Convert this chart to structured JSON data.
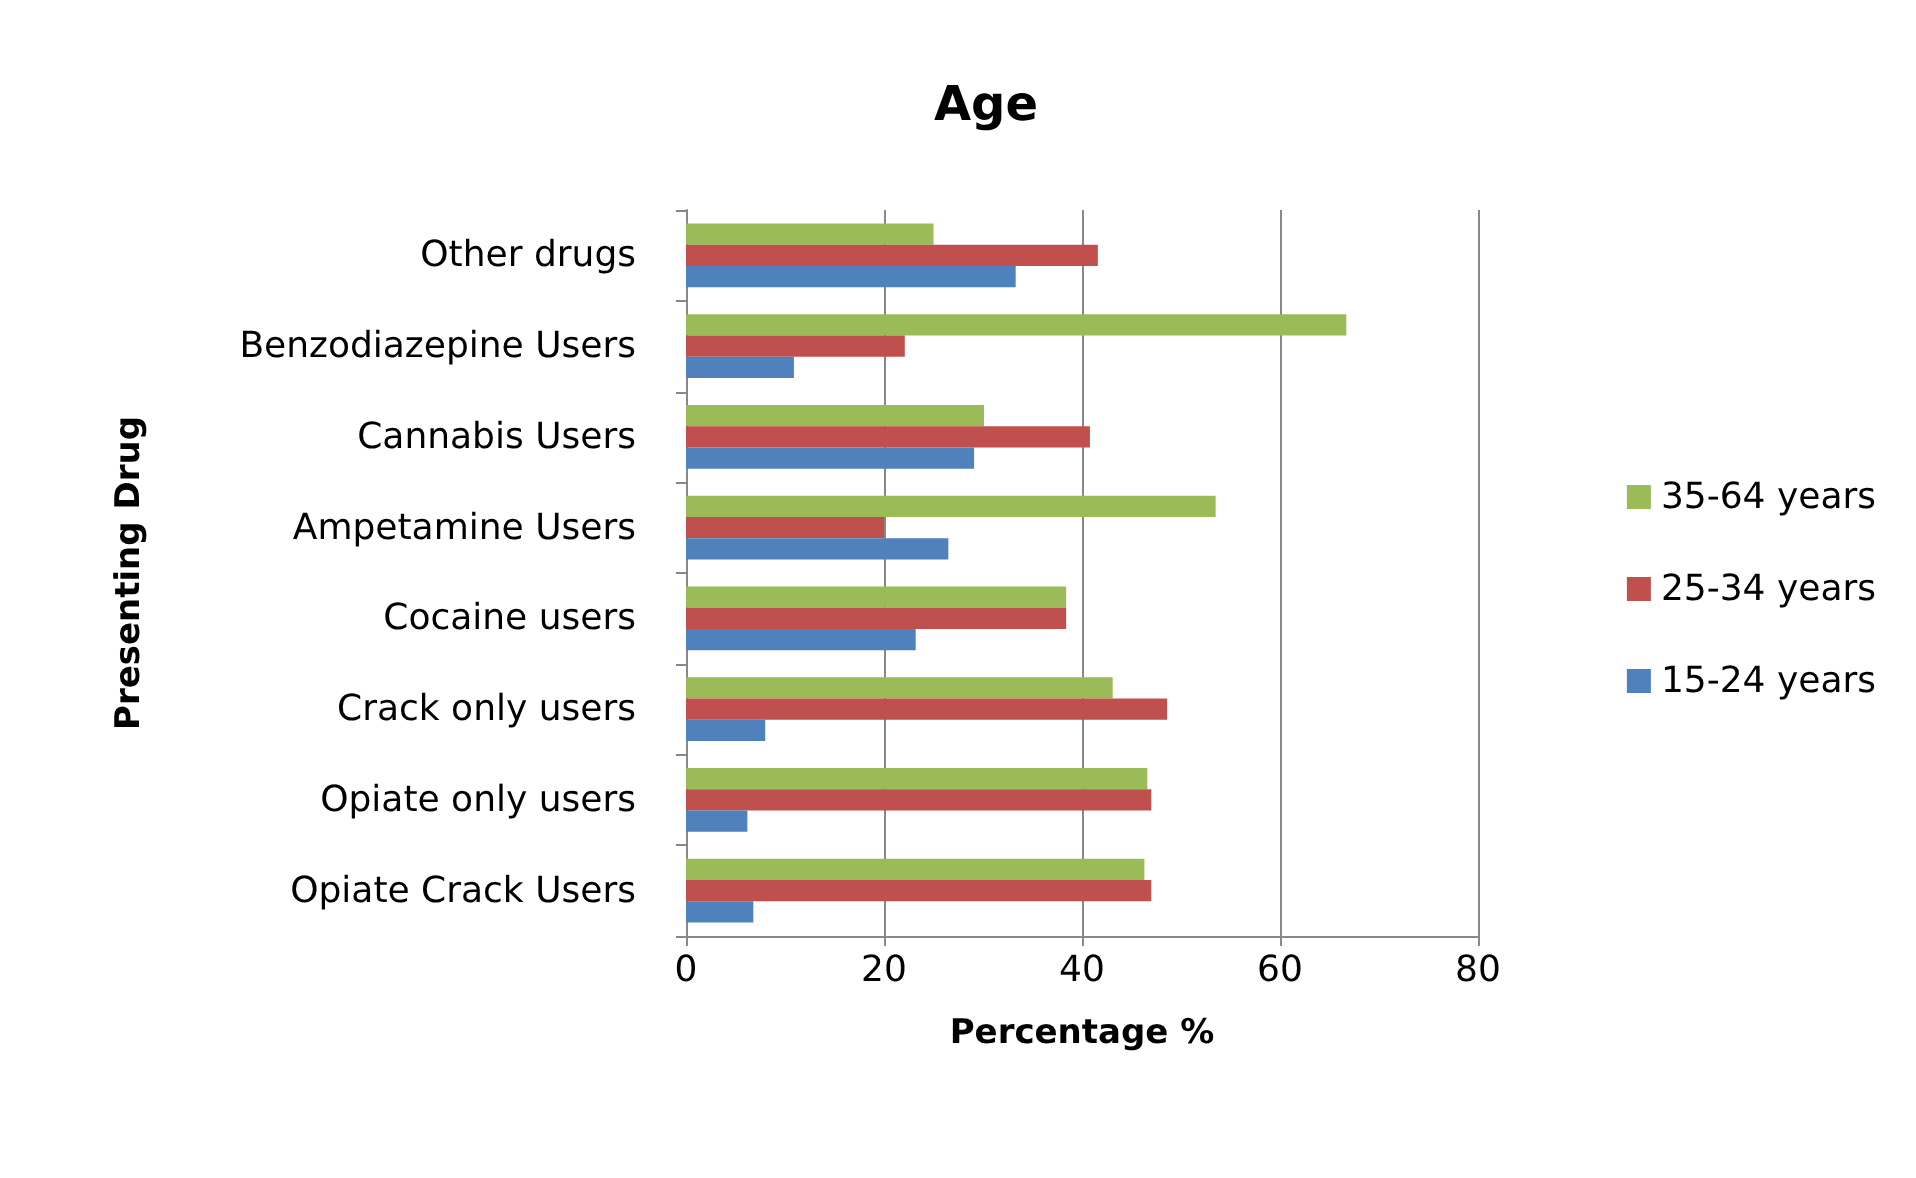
{
  "chart_data": {
    "type": "bar",
    "orientation": "horizontal",
    "title": "Age",
    "xlabel": "Percentage %",
    "ylabel": "Presenting Drug",
    "categories": [
      "Other drugs",
      "Benzodiazepine Users",
      "Cannabis Users",
      "Ampetamine Users",
      "Cocaine users",
      "Crack only users",
      "Opiate only users",
      "Opiate Crack Users"
    ],
    "series": [
      {
        "name": "35-64 years",
        "color": "#9bbb59",
        "values": [
          25,
          66.7,
          30.1,
          53.5,
          38.4,
          43.1,
          46.6,
          46.3
        ]
      },
      {
        "name": "25-34 years",
        "color": "#c0504d",
        "values": [
          41.6,
          22.1,
          40.8,
          20,
          38.4,
          48.6,
          47,
          47
        ]
      },
      {
        "name": "15-24 years",
        "color": "#4f81bd",
        "values": [
          33.3,
          10.9,
          29.1,
          26.5,
          23.2,
          8,
          6.2,
          6.8
        ]
      }
    ],
    "xlim": [
      0,
      80
    ],
    "xticks": [
      0,
      20,
      40,
      60,
      80
    ],
    "grid": "x",
    "legend": "right"
  }
}
